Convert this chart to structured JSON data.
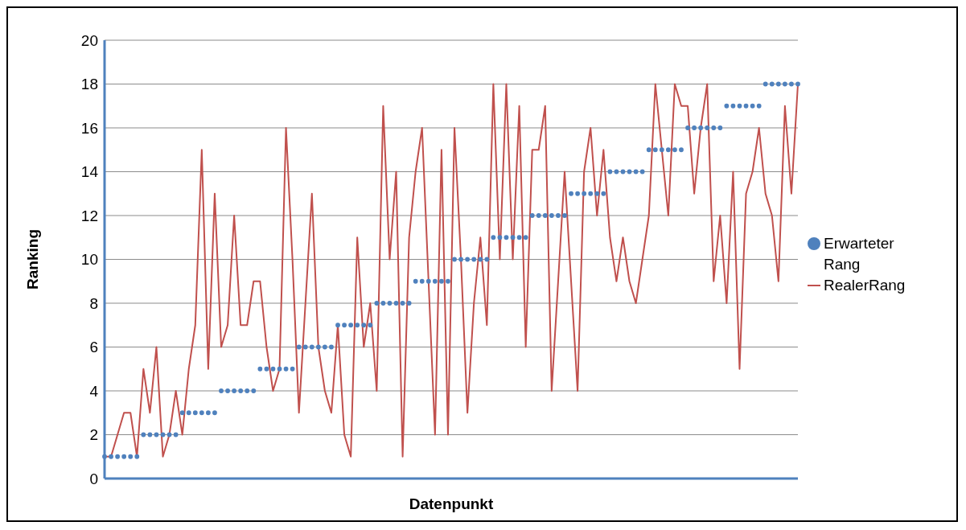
{
  "chart_data": {
    "type": "line",
    "xlabel": "Datenpunkt",
    "ylabel": "Ranking",
    "categories": [
      null,
      null,
      null,
      null,
      null,
      null,
      null,
      null,
      null,
      null,
      null,
      null,
      null,
      null,
      null,
      null,
      null,
      null,
      null,
      null,
      null,
      null,
      null,
      null,
      null,
      null,
      null,
      null,
      null,
      null,
      null,
      null,
      null,
      null,
      null,
      null,
      null,
      null,
      null,
      null,
      null,
      null,
      null,
      null,
      null,
      null,
      null,
      null,
      null,
      null,
      null,
      null,
      null,
      null,
      null,
      null,
      null,
      null,
      null,
      null,
      null,
      null,
      null,
      null,
      null,
      null,
      null,
      null,
      null,
      null,
      null,
      null,
      null,
      null,
      null,
      null,
      null,
      null,
      null,
      null,
      null,
      null,
      null,
      null,
      null,
      null,
      null,
      null,
      null,
      null,
      null,
      null,
      null,
      null,
      null,
      null,
      null,
      null,
      null,
      null,
      null,
      null,
      null,
      null,
      null,
      null,
      null,
      null
    ],
    "series": [
      {
        "name": "Erwarteter Rang",
        "type": "scatter",
        "marker": "circle",
        "color": "#4f81bd",
        "values": [
          1,
          1,
          1,
          1,
          1,
          1,
          2,
          2,
          2,
          2,
          2,
          2,
          3,
          3,
          3,
          3,
          3,
          3,
          4,
          4,
          4,
          4,
          4,
          4,
          5,
          5,
          5,
          5,
          5,
          5,
          6,
          6,
          6,
          6,
          6,
          6,
          7,
          7,
          7,
          7,
          7,
          7,
          8,
          8,
          8,
          8,
          8,
          8,
          9,
          9,
          9,
          9,
          9,
          9,
          10,
          10,
          10,
          10,
          10,
          10,
          11,
          11,
          11,
          11,
          11,
          11,
          12,
          12,
          12,
          12,
          12,
          12,
          13,
          13,
          13,
          13,
          13,
          13,
          14,
          14,
          14,
          14,
          14,
          14,
          15,
          15,
          15,
          15,
          15,
          15,
          16,
          16,
          16,
          16,
          16,
          16,
          17,
          17,
          17,
          17,
          17,
          17,
          18,
          18,
          18,
          18,
          18,
          18
        ]
      },
      {
        "name": "RealerRang",
        "marker": "none",
        "color": "#c0504d",
        "values": [
          1,
          1,
          2,
          3,
          3,
          1,
          5,
          3,
          6,
          1,
          2,
          4,
          2,
          5,
          7,
          15,
          5,
          13,
          6,
          7,
          12,
          7,
          7,
          9,
          9,
          6,
          4,
          5,
          16,
          10,
          3,
          8,
          13,
          6,
          4,
          3,
          7,
          2,
          1,
          11,
          6,
          8,
          4,
          17,
          10,
          14,
          1,
          11,
          14,
          16,
          9,
          2,
          15,
          2,
          16,
          10,
          3,
          8,
          11,
          7,
          18,
          10,
          18,
          10,
          17,
          6,
          15,
          15,
          17,
          4,
          9,
          14,
          9,
          4,
          14,
          16,
          12,
          15,
          11,
          9,
          11,
          9,
          8,
          10,
          12,
          18,
          15,
          12,
          18,
          17,
          17,
          13,
          16,
          18,
          9,
          12,
          8,
          14,
          5,
          13,
          14,
          16,
          13,
          12,
          9,
          17,
          13,
          18
        ]
      }
    ],
    "ylim": [
      0,
      20
    ],
    "yticks": [
      0,
      2,
      4,
      6,
      8,
      10,
      12,
      14,
      16,
      18,
      20
    ],
    "grid": "y",
    "legend": "right",
    "line_style": "solid"
  }
}
